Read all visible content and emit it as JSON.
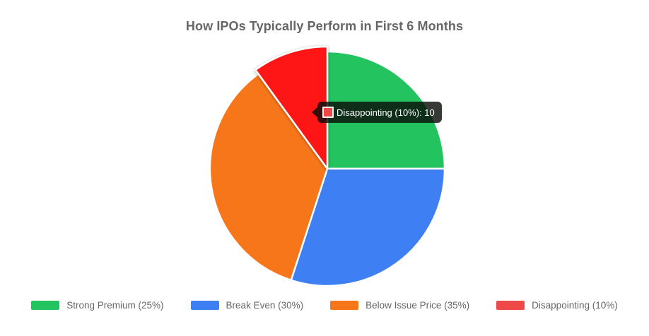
{
  "title": "How IPOs Typically Perform in First 6 Months",
  "tooltip": {
    "text": "Disappointing (10%): 10",
    "background": "#0a0e0a",
    "swatch_color": "#ef4848",
    "swatch_border_color": "#f3efef",
    "text_color": "#ffffff"
  },
  "legend_position": "bottom",
  "text_color": "#666666",
  "chart_data": {
    "type": "pie",
    "title": "How IPOs Typically Perform in First 6 Months",
    "start_angle_deg_from_top": 0,
    "direction": "clockwise",
    "legend_position": "bottom",
    "categories": [
      "Strong Premium (25%)",
      "Break Even (30%)",
      "Below Issue Price (35%)",
      "Disappointing (10%)"
    ],
    "values": [
      25,
      30,
      35,
      10
    ],
    "segments": [
      {
        "label": "Strong Premium (25%)",
        "value": 25,
        "color": "#23c45f",
        "hovered": false
      },
      {
        "label": "Break Even (30%)",
        "value": 30,
        "color": "#3e80f3",
        "hovered": false
      },
      {
        "label": "Below Issue Price (35%)",
        "value": 35,
        "color": "#f8761a",
        "hovered": false
      },
      {
        "label": "Disappointing (10%)",
        "value": 10,
        "color": "#ef4848",
        "hover_color": "#fe1717",
        "hovered": true
      }
    ]
  }
}
